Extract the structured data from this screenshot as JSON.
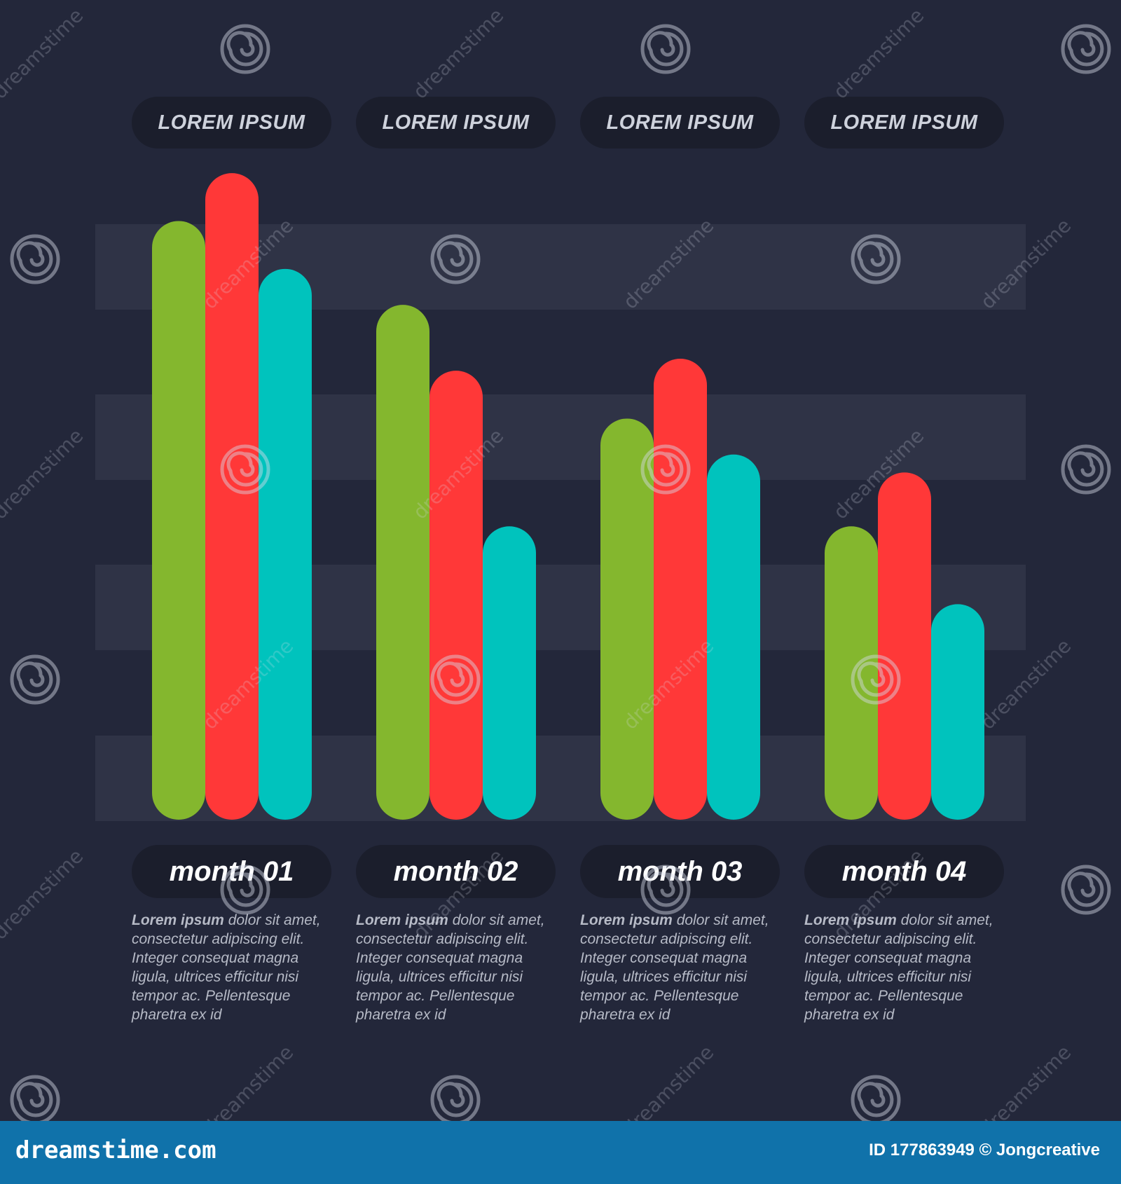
{
  "chart_data": {
    "type": "bar",
    "title": "",
    "xlabel": "",
    "ylabel": "",
    "categories": [
      "month 01",
      "month 02",
      "month 03",
      "month 04"
    ],
    "series": [
      {
        "color": "#84b72e",
        "values": [
          100,
          86,
          67,
          49
        ]
      },
      {
        "color": "#ff3838",
        "values": [
          108,
          75,
          77,
          58
        ]
      },
      {
        "color": "#00c3bd",
        "values": [
          92,
          49,
          61,
          36
        ]
      }
    ],
    "ylim": [
      0,
      110
    ],
    "grid": true,
    "legend": "none"
  },
  "headers": [
    "LOREM IPSUM",
    "LOREM IPSUM",
    "LOREM IPSUM",
    "LOREM IPSUM"
  ],
  "descriptions": [
    {
      "bold": "Lorem ipsum",
      "text": " dolor sit amet, consectetur adipiscing elit. Integer consequat magna ligula, ultrices efficitur nisi tempor ac. Pellentesque pharetra ex id"
    },
    {
      "bold": "Lorem ipsum",
      "text": " dolor sit amet, consectetur adipiscing elit. Integer consequat magna ligula, ultrices efficitur nisi tempor ac. Pellentesque pharetra ex id"
    },
    {
      "bold": "Lorem ipsum",
      "text": " dolor sit amet, consectetur adipiscing elit. Integer consequat magna ligula, ultrices efficitur nisi tempor ac. Pellentesque pharetra ex id"
    },
    {
      "bold": "Lorem ipsum",
      "text": " dolor sit amet, consectetur adipiscing elit. Integer consequat magna ligula, ultrices efficitur nisi tempor ac. Pellentesque pharetra ex id"
    }
  ],
  "footer": {
    "site": "dreamstime.com",
    "credit": "ID 177863949 © Jongcreative"
  },
  "watermark": {
    "text": "dreamstime",
    "icon": "swirl-logo-icon"
  }
}
